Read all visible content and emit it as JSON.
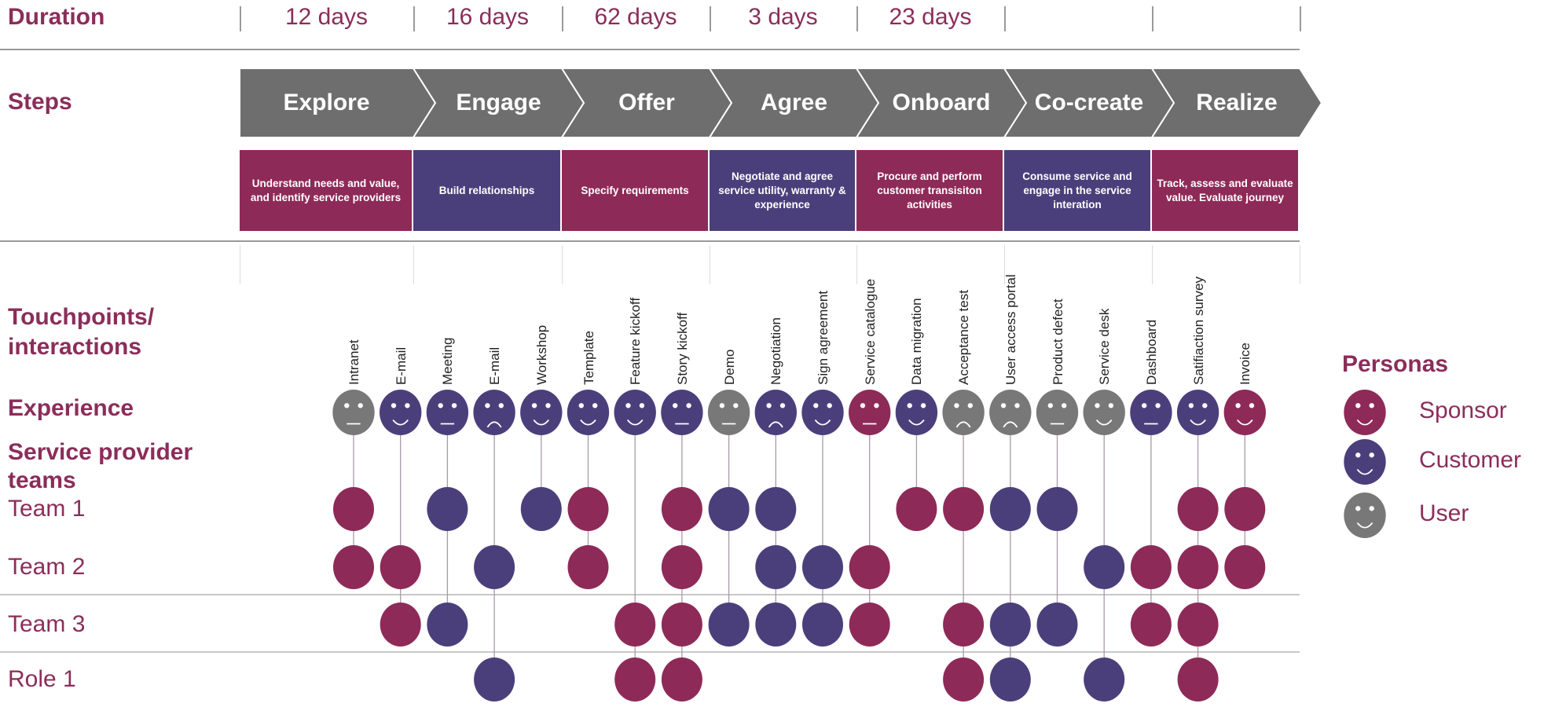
{
  "labels": {
    "duration": "Duration",
    "steps": "Steps",
    "touchpoints_line1": "Touchpoints/",
    "touchpoints_line2": "interactions",
    "experience": "Experience",
    "teams_line1": "Service provider",
    "teams_line2": "teams"
  },
  "durations": [
    "12 days",
    "16 days",
    "62 days",
    "3 days",
    "23 days",
    "",
    ""
  ],
  "steps": [
    {
      "name": "Explore",
      "description": "Understand needs and value, and identify service providers",
      "color": "#8e2a58"
    },
    {
      "name": "Engage",
      "description": "Build relationships",
      "color": "#4b3f7b"
    },
    {
      "name": "Offer",
      "description": "Specify requirements",
      "color": "#8e2a58"
    },
    {
      "name": "Agree",
      "description": "Negotiate and agree service utility, warranty & experience",
      "color": "#4b3f7b"
    },
    {
      "name": "Onboard",
      "description": "Procure and perform customer transisiton activities",
      "color": "#8e2a58"
    },
    {
      "name": "Co-create",
      "description": "Consume service and engage in the service interation",
      "color": "#4b3f7b"
    },
    {
      "name": "Realize",
      "description": "Track, assess and evaluate value. Evaluate journey",
      "color": "#8e2a58"
    }
  ],
  "touchpoints": [
    {
      "label": "Intranet",
      "persona": "user",
      "mood": "neutral"
    },
    {
      "label": "E-mail",
      "persona": "customer",
      "mood": "happy"
    },
    {
      "label": "Meeting",
      "persona": "customer",
      "mood": "neutral"
    },
    {
      "label": "E-mail",
      "persona": "customer",
      "mood": "sad"
    },
    {
      "label": "Workshop",
      "persona": "customer",
      "mood": "happy"
    },
    {
      "label": "Template",
      "persona": "customer",
      "mood": "happy"
    },
    {
      "label": "Feature kickoff",
      "persona": "customer",
      "mood": "happy"
    },
    {
      "label": "Story kickoff",
      "persona": "customer",
      "mood": "neutral"
    },
    {
      "label": "Demo",
      "persona": "user",
      "mood": "neutral"
    },
    {
      "label": "Negotiation",
      "persona": "customer",
      "mood": "sad"
    },
    {
      "label": "Sign agreement",
      "persona": "customer",
      "mood": "happy"
    },
    {
      "label": "Service catalogue",
      "persona": "sponsor",
      "mood": "neutral"
    },
    {
      "label": "Data migration",
      "persona": "customer",
      "mood": "happy"
    },
    {
      "label": "Acceptance test",
      "persona": "user",
      "mood": "sad"
    },
    {
      "label": "User access portal",
      "persona": "user",
      "mood": "sad"
    },
    {
      "label": "Product defect",
      "persona": "user",
      "mood": "neutral"
    },
    {
      "label": "Service desk",
      "persona": "user",
      "mood": "happy"
    },
    {
      "label": "Dashboard",
      "persona": "customer",
      "mood": "neutral"
    },
    {
      "label": "Satifiaction survey",
      "persona": "customer",
      "mood": "happy"
    },
    {
      "label": "Invoice",
      "persona": "sponsor",
      "mood": "happy"
    }
  ],
  "teams": [
    {
      "name": "Team 1",
      "cells": [
        "sponsor",
        null,
        "customer",
        null,
        "customer",
        "sponsor",
        null,
        "sponsor",
        "customer",
        "customer",
        null,
        null,
        "sponsor",
        "sponsor",
        "customer",
        "customer",
        null,
        null,
        "sponsor",
        "sponsor"
      ]
    },
    {
      "name": "Team 2",
      "cells": [
        "sponsor",
        "sponsor",
        null,
        "customer",
        null,
        "sponsor",
        null,
        "sponsor",
        null,
        "customer",
        "customer",
        "sponsor",
        null,
        null,
        null,
        null,
        "customer",
        "sponsor",
        "sponsor",
        "sponsor"
      ]
    },
    {
      "name": "Team 3",
      "cells": [
        null,
        "sponsor",
        "customer",
        null,
        null,
        null,
        "sponsor",
        "sponsor",
        "customer",
        "customer",
        "customer",
        "sponsor",
        null,
        "sponsor",
        "customer",
        "customer",
        null,
        "sponsor",
        "sponsor",
        null
      ]
    },
    {
      "name": "Role 1",
      "cells": [
        null,
        null,
        null,
        "customer",
        null,
        null,
        "sponsor",
        "sponsor",
        null,
        null,
        null,
        null,
        null,
        "sponsor",
        "customer",
        null,
        "customer",
        null,
        "sponsor",
        null
      ]
    }
  ],
  "personas": {
    "title": "Personas",
    "items": [
      {
        "key": "sponsor",
        "label": "Sponsor",
        "color": "#8e2a58"
      },
      {
        "key": "customer",
        "label": "Customer",
        "color": "#4b3f7b"
      },
      {
        "key": "user",
        "label": "User",
        "color": "#787878"
      }
    ]
  },
  "colors": {
    "accent_text": "#8b2d5a",
    "step_arrow": "#6e6e6e"
  }
}
